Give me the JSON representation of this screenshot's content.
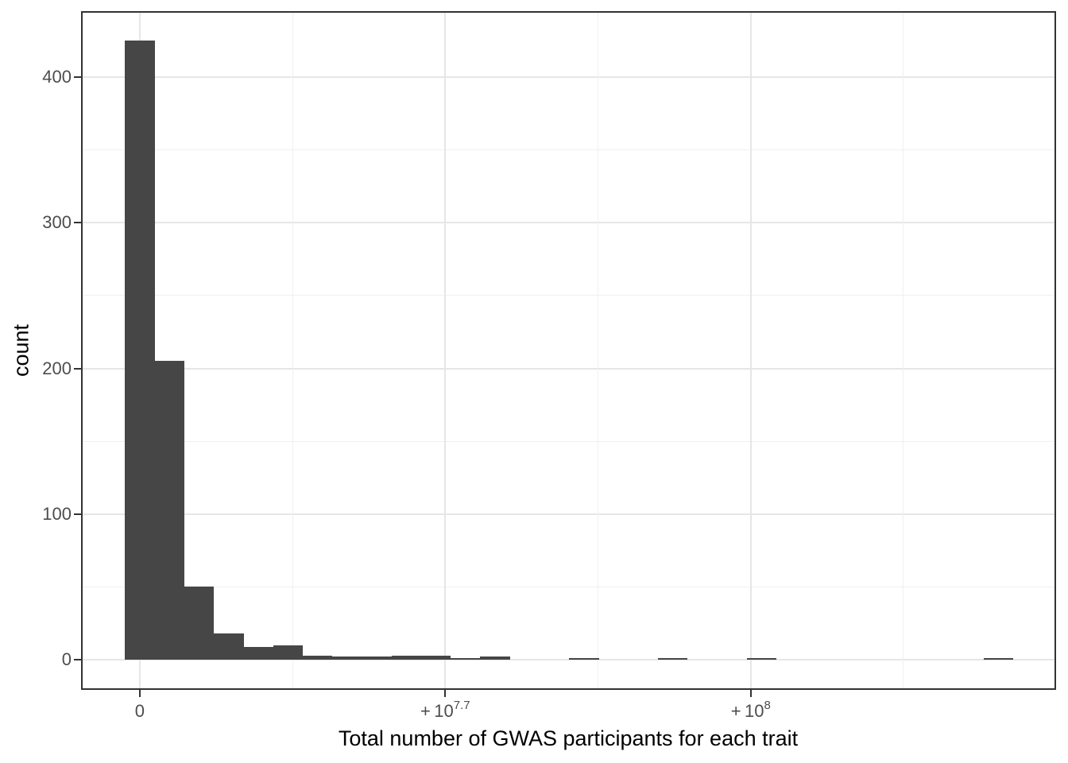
{
  "chart_data": {
    "type": "histogram",
    "title": "",
    "xlabel": "Total number of GWAS participants for each trait",
    "ylabel": "count",
    "bar_color": "#464646",
    "tick_text_color": "#4d4d4d",
    "title_text_color": "#000000",
    "grid": true,
    "legend": false,
    "x_scale": "pseudo-log (signed log10), ticks evenly spaced",
    "x_ticks": [
      {
        "label": "0"
      },
      {
        "label": "+ 10",
        "sup": "7.7"
      },
      {
        "label": "+ 10",
        "sup": "8"
      }
    ],
    "x_tick_bin_positions": [
      0,
      10.32,
      20.64
    ],
    "x_minor_bin_positions": [
      5.16,
      15.48,
      25.8
    ],
    "y_ticks": [
      0,
      100,
      200,
      300,
      400
    ],
    "y_minor_ticks": [
      50,
      150,
      250,
      350
    ],
    "ylim": [
      -21,
      446
    ],
    "bins": 30,
    "bin_counts": [
      425,
      205,
      50,
      18,
      9,
      10,
      3,
      2,
      2,
      3,
      3,
      1,
      2,
      0,
      0,
      1,
      0,
      0,
      1,
      0,
      0,
      1,
      0,
      0,
      0,
      0,
      0,
      0,
      0,
      1
    ]
  }
}
